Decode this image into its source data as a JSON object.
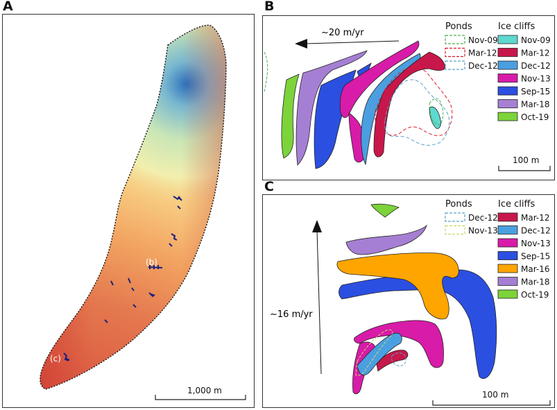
{
  "panels": {
    "a": {
      "label": "A",
      "annotations": [
        "(b)",
        "(c)"
      ],
      "scale_bar": "1,000 m"
    },
    "b": {
      "label": "B",
      "flow_label": "~20 m/yr",
      "scale_bar": "100 m",
      "legend_ponds_title": "Ponds",
      "legend_cliffs_title": "Ice cliffs",
      "ponds": [
        {
          "label": "Nov-09",
          "color": "#4caf50"
        },
        {
          "label": "Mar-12",
          "color": "#d81b2c"
        },
        {
          "label": "Dec-12",
          "color": "#5aa0c8"
        }
      ],
      "cliffs": [
        {
          "label": "Nov-09",
          "color": "#5fd8d0"
        },
        {
          "label": "Mar-12",
          "color": "#c8174a"
        },
        {
          "label": "Dec-12",
          "color": "#4a9fe0"
        },
        {
          "label": "Nov-13",
          "color": "#d81ba8"
        },
        {
          "label": "Sep-15",
          "color": "#2b4fe0"
        },
        {
          "label": "Mar-18",
          "color": "#a57fd3"
        },
        {
          "label": "Oct-19",
          "color": "#7cd33a"
        }
      ]
    },
    "c": {
      "label": "C",
      "flow_label": "~16 m/yr",
      "scale_bar": "100 m",
      "legend_ponds_title": "Ponds",
      "legend_cliffs_title": "Ice cliffs",
      "ponds": [
        {
          "label": "Dec-12",
          "color": "#5aa0c8"
        },
        {
          "label": "Nov-13",
          "color": "#c6d96a"
        }
      ],
      "cliffs": [
        {
          "label": "Mar-12",
          "color": "#c8174a"
        },
        {
          "label": "Dec-12",
          "color": "#4a9fe0"
        },
        {
          "label": "Nov-13",
          "color": "#d81ba8"
        },
        {
          "label": "Sep-15",
          "color": "#2b4fe0"
        },
        {
          "label": "Mar-16",
          "color": "#ffa500"
        },
        {
          "label": "Mar-18",
          "color": "#a57fd3"
        },
        {
          "label": "Oct-19",
          "color": "#7cd33a"
        }
      ]
    }
  }
}
